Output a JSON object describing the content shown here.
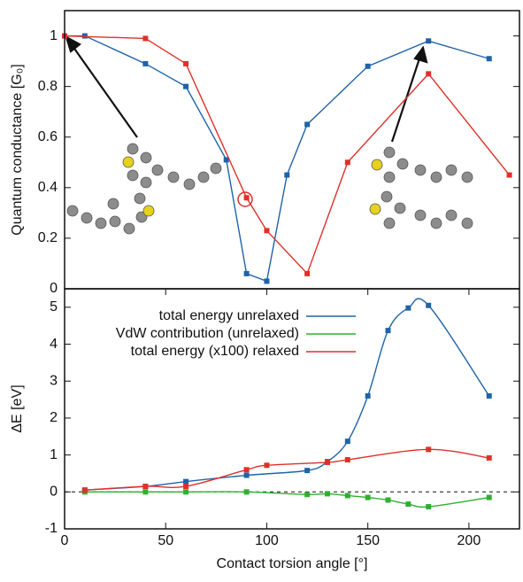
{
  "chart_data": [
    {
      "type": "line",
      "ylabel": "Quantum conductance [G₀]",
      "xlim": [
        0,
        225
      ],
      "ylim": [
        0,
        1.1
      ],
      "yticks": [
        0,
        0.2,
        0.4,
        0.6,
        0.8,
        1
      ],
      "series": [
        {
          "color": "#1f63a8",
          "x": [
            0,
            10,
            40,
            60,
            80,
            90,
            100,
            110,
            120,
            150,
            180,
            210
          ],
          "values": [
            1,
            1,
            0.89,
            0.8,
            0.51,
            0.06,
            0.03,
            0.45,
            0.65,
            0.88,
            0.98,
            0.91
          ]
        },
        {
          "color": "#e0302a",
          "x": [
            0,
            40,
            60,
            90,
            100,
            120,
            140,
            180,
            220
          ],
          "values": [
            1,
            0.99,
            0.89,
            0.36,
            0.23,
            0.06,
            0.5,
            0.85,
            0.45
          ]
        }
      ]
    },
    {
      "type": "line",
      "smooth": true,
      "xlabel": "Contact torsion angle [°]",
      "ylabel": "ΔE [eV]",
      "xlim": [
        0,
        225
      ],
      "ylim": [
        -1,
        5.5
      ],
      "xticks": [
        0,
        50,
        100,
        150,
        200
      ],
      "yticks": [
        -1,
        0,
        1,
        2,
        3,
        4,
        5
      ],
      "hline": 0,
      "legend": "top-left",
      "series": [
        {
          "name": "total energy unrelaxed",
          "color": "#1f63a8",
          "x": [
            10,
            40,
            60,
            90,
            120,
            130,
            140,
            150,
            160,
            170,
            180,
            210
          ],
          "values": [
            0.05,
            0.15,
            0.28,
            0.45,
            0.58,
            0.82,
            1.37,
            2.6,
            4.37,
            4.98,
            5.05,
            2.6
          ]
        },
        {
          "name": "VdW contribution (unrelaxed)",
          "color": "#2fb02f",
          "x": [
            10,
            40,
            60,
            90,
            120,
            130,
            140,
            150,
            160,
            170,
            180,
            210
          ],
          "values": [
            0,
            0,
            0,
            0,
            -0.07,
            -0.05,
            -0.1,
            -0.15,
            -0.22,
            -0.33,
            -0.4,
            -0.15
          ]
        },
        {
          "name": "total energy (x100) relaxed",
          "color": "#e0302a",
          "x": [
            10,
            40,
            60,
            90,
            100,
            130,
            140,
            180,
            210
          ],
          "values": [
            0.05,
            0.15,
            0.15,
            0.6,
            0.72,
            0.8,
            0.87,
            1.15,
            0.92
          ]
        }
      ]
    }
  ]
}
